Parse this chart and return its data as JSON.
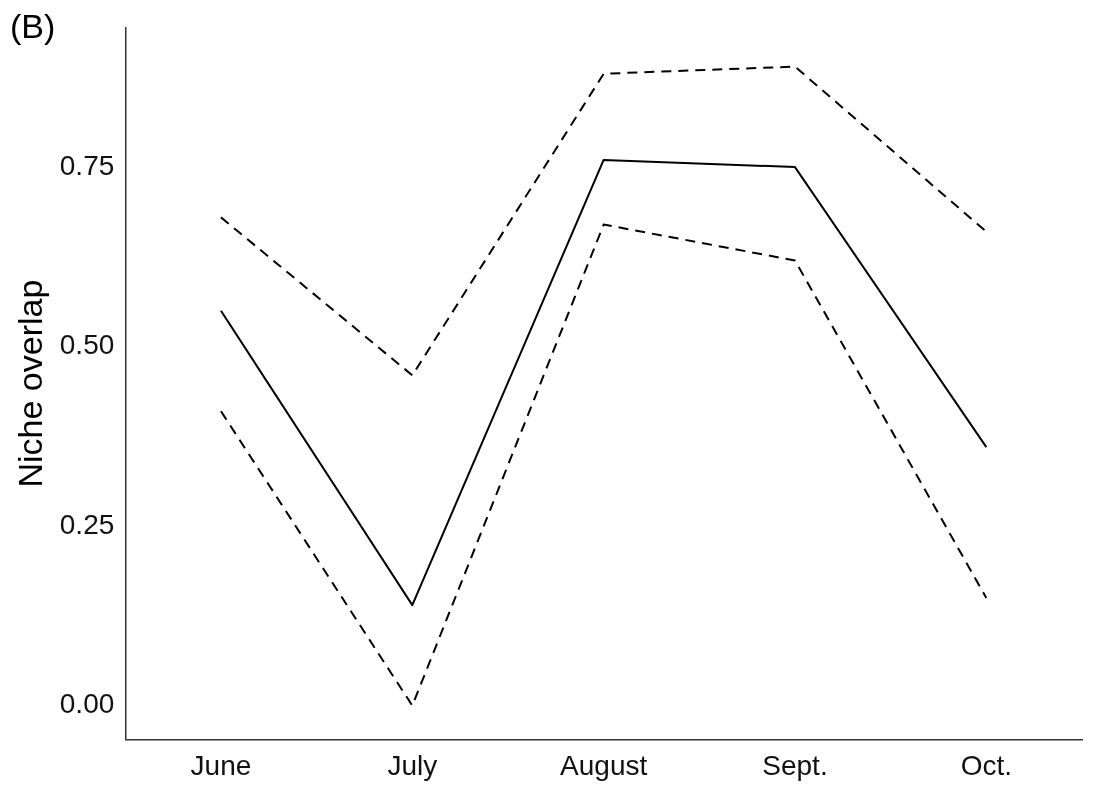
{
  "chart_data": {
    "type": "line",
    "ylabel": "Niche overlap",
    "annotations": [
      "(B)"
    ],
    "categories": [
      "June",
      "July",
      "August",
      "Sept.",
      "Oct."
    ],
    "series": [
      {
        "color": "#000000",
        "line_style": "solid",
        "values": [
          0.55,
          0.14,
          0.76,
          0.75,
          0.36
        ]
      },
      {
        "color": "#000000",
        "line_style": "dashed",
        "values": [
          0.68,
          0.46,
          0.88,
          0.89,
          0.66
        ]
      },
      {
        "color": "#000000",
        "line_style": "dashed",
        "values": [
          0.41,
          0.0,
          0.67,
          0.62,
          0.15
        ]
      }
    ],
    "ylim": [
      -0.047,
      0.944
    ],
    "yticks": [
      {
        "value": 0,
        "label": "0.00"
      },
      {
        "value": 0.25,
        "label": "0.25"
      },
      {
        "value": 0.5,
        "label": "0.50"
      },
      {
        "value": 0.75,
        "label": "0.75"
      }
    ],
    "grid": false,
    "legend": false,
    "marker": "none"
  }
}
